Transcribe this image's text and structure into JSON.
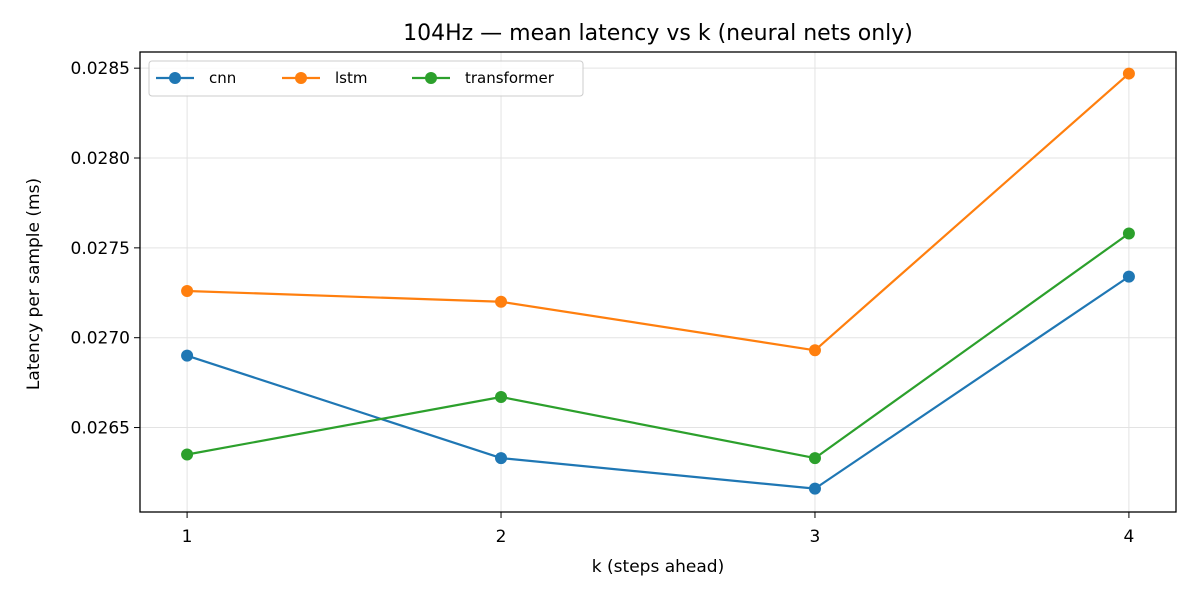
{
  "chart_data": {
    "type": "line",
    "title": "104Hz — mean latency vs k (neural nets only)",
    "xlabel": "k (steps ahead)",
    "ylabel": "Latency per sample (ms)",
    "x": [
      1,
      2,
      3,
      4
    ],
    "x_tick_labels": [
      "1",
      "2",
      "3",
      "4"
    ],
    "xlim": [
      0.85,
      4.15
    ],
    "ylim": [
      0.02603,
      0.02859
    ],
    "y_ticks": [
      0.0265,
      0.027,
      0.0275,
      0.028,
      0.0285
    ],
    "y_tick_labels": [
      "0.0265",
      "0.0270",
      "0.0275",
      "0.0280",
      "0.0285"
    ],
    "grid": true,
    "legend_position": "top-left",
    "series": [
      {
        "name": "cnn",
        "color": "#1f77b4",
        "values": [
          0.0269,
          0.02633,
          0.02616,
          0.02734
        ]
      },
      {
        "name": "lstm",
        "color": "#ff7f0e",
        "values": [
          0.02726,
          0.0272,
          0.02693,
          0.02847
        ]
      },
      {
        "name": "transformer",
        "color": "#2ca02c",
        "values": [
          0.02635,
          0.02667,
          0.02633,
          0.02758
        ]
      }
    ]
  }
}
